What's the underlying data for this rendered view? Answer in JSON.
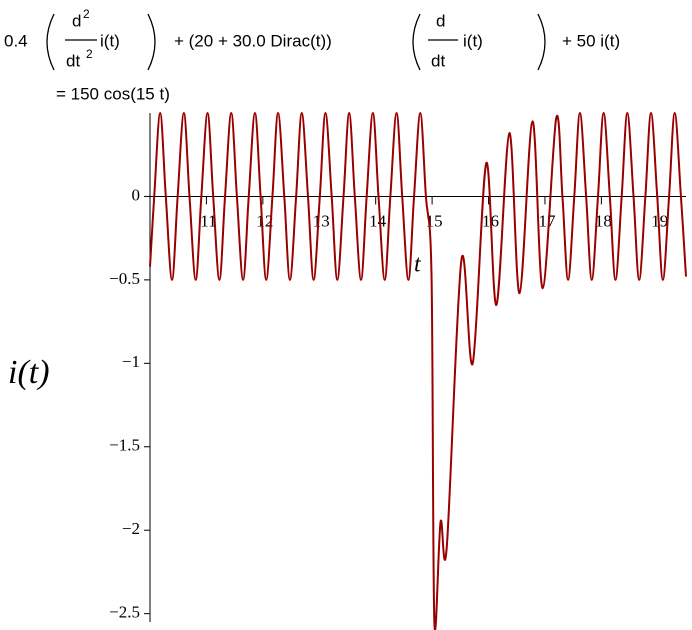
{
  "chart_data": {
    "type": "line",
    "title": [
      "0.4",
      "d",
      "2",
      "dt",
      "2",
      "i(t)",
      "+ (20 + 30.0 Dirac(t))",
      "d",
      "dt",
      "i(t)",
      "+ 50 i(t)",
      "= 150 cos(15 t)"
    ],
    "x_label": "t",
    "y_label": "i(t)",
    "x": [
      10.0,
      10.075,
      10.18,
      10.28,
      10.39,
      10.49,
      10.6,
      10.7,
      10.81,
      10.91,
      11.02,
      11.12,
      11.23,
      11.33,
      11.44,
      11.54,
      11.65,
      11.75,
      11.86,
      11.96,
      12.06,
      12.17,
      12.27,
      12.38,
      12.48,
      12.59,
      12.69,
      12.8,
      12.9,
      13.01,
      13.11,
      13.22,
      13.32,
      13.43,
      13.53,
      13.63,
      13.74,
      13.84,
      13.95,
      14.05,
      14.16,
      14.26,
      14.37,
      14.47,
      14.58,
      14.68,
      14.79,
      14.89,
      14.99,
      15.04,
      15.15,
      15.26,
      15.52,
      15.72,
      15.96,
      16.14,
      16.37,
      16.55,
      16.78,
      16.96,
      17.2,
      17.31,
      17.41,
      17.52,
      17.62,
      17.73,
      17.83,
      17.94,
      18.04,
      18.15,
      18.25,
      18.36,
      18.46,
      18.57,
      18.67,
      18.78,
      18.88,
      18.99,
      19.09,
      19.2,
      19.3,
      19.41,
      19.5
    ],
    "series": [
      {
        "color": "#990000",
        "values": [
          -0.42,
          0,
          0.5,
          0,
          -0.5,
          0,
          0.5,
          0,
          -0.5,
          0,
          0.5,
          0,
          -0.5,
          0,
          0.5,
          0,
          -0.5,
          0,
          0.5,
          0,
          -0.5,
          0,
          0.5,
          0,
          -0.5,
          0,
          0.5,
          0,
          -0.5,
          0,
          0.5,
          0,
          -0.5,
          0,
          0.5,
          0,
          -0.5,
          0,
          0.5,
          0,
          -0.5,
          0,
          0.5,
          0,
          -0.5,
          0,
          0.5,
          0,
          -0.48,
          -2.55,
          -1.95,
          -2.1,
          -0.38,
          -1.0,
          0.2,
          -0.65,
          0.38,
          -0.58,
          0.45,
          -0.55,
          0.47,
          0,
          -0.5,
          0,
          0.5,
          0,
          -0.5,
          0,
          0.5,
          0,
          -0.5,
          0,
          0.5,
          0,
          -0.5,
          0,
          0.5,
          0,
          -0.5,
          0,
          0.5,
          0,
          -0.48
        ]
      }
    ],
    "xlim": [
      10,
      19.5
    ],
    "ylim": [
      -2.55,
      0.5
    ],
    "xticks": [
      11,
      12,
      13,
      14,
      15,
      16,
      17,
      18,
      19
    ],
    "yticks": [
      0,
      {
        "value": -0.5,
        "label": "−0.5"
      },
      {
        "value": -1,
        "label": "−1"
      },
      {
        "value": -1.5,
        "label": "−1.5"
      },
      {
        "value": -2,
        "label": "−2"
      },
      {
        "value": -2.5,
        "label": "−2.5"
      }
    ]
  }
}
